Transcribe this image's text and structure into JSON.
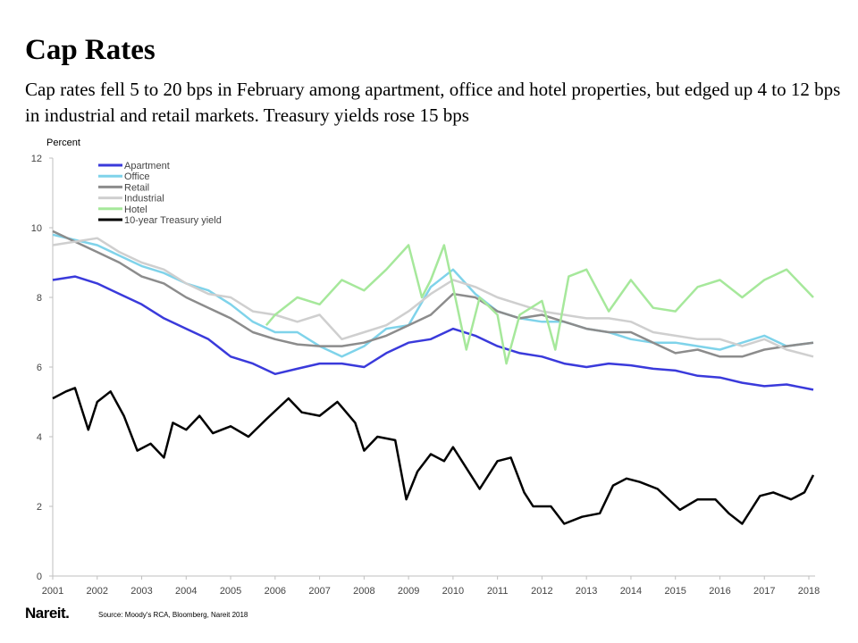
{
  "title": "Cap Rates",
  "subtitle": "Cap rates fell 5 to 20 bps in February among apartment, office and hotel properties, but edged up 4 to 12 bps in industrial and retail markets. Treasury yields rose 15 bps",
  "footer": {
    "logo": "Nareit.",
    "source": "Source: Moody's RCA, Bloomberg, Nareit 2018"
  },
  "chart_data": {
    "type": "line",
    "ylabel": "Percent",
    "xlim": [
      2001,
      2018.1
    ],
    "ylim": [
      0,
      12
    ],
    "yticks": [
      0,
      2,
      4,
      6,
      8,
      10,
      12
    ],
    "xticks": [
      "2001",
      "2002",
      "2003",
      "2004",
      "2005",
      "2006",
      "2007",
      "2008",
      "2009",
      "2010",
      "2011",
      "2012",
      "2013",
      "2014",
      "2015",
      "2016",
      "2017",
      "2018"
    ],
    "grid": false,
    "legend_placement": "top-left",
    "series": [
      {
        "name": "Apartment",
        "color": "#3a3adb",
        "points": [
          [
            2001,
            8.5
          ],
          [
            2001.5,
            8.6
          ],
          [
            2002,
            8.4
          ],
          [
            2002.5,
            8.1
          ],
          [
            2003,
            7.8
          ],
          [
            2003.5,
            7.4
          ],
          [
            2004,
            7.1
          ],
          [
            2004.5,
            6.8
          ],
          [
            2005,
            6.3
          ],
          [
            2005.5,
            6.1
          ],
          [
            2006,
            5.8
          ],
          [
            2006.5,
            5.95
          ],
          [
            2007,
            6.1
          ],
          [
            2007.5,
            6.1
          ],
          [
            2008,
            6.0
          ],
          [
            2008.5,
            6.4
          ],
          [
            2009,
            6.7
          ],
          [
            2009.5,
            6.8
          ],
          [
            2010,
            7.1
          ],
          [
            2010.5,
            6.9
          ],
          [
            2011,
            6.6
          ],
          [
            2011.5,
            6.4
          ],
          [
            2012,
            6.3
          ],
          [
            2012.5,
            6.1
          ],
          [
            2013,
            6.0
          ],
          [
            2013.5,
            6.1
          ],
          [
            2014,
            6.05
          ],
          [
            2014.5,
            5.95
          ],
          [
            2015,
            5.9
          ],
          [
            2015.5,
            5.75
          ],
          [
            2016,
            5.7
          ],
          [
            2016.5,
            5.55
          ],
          [
            2017,
            5.45
          ],
          [
            2017.5,
            5.5
          ],
          [
            2018.1,
            5.35
          ]
        ]
      },
      {
        "name": "Office",
        "color": "#7fd3ea",
        "points": [
          [
            2001,
            9.8
          ],
          [
            2002,
            9.5
          ],
          [
            2002.5,
            9.2
          ],
          [
            2003,
            8.9
          ],
          [
            2003.5,
            8.7
          ],
          [
            2004,
            8.4
          ],
          [
            2004.5,
            8.2
          ],
          [
            2005,
            7.8
          ],
          [
            2005.5,
            7.3
          ],
          [
            2006,
            7.0
          ],
          [
            2006.5,
            7.0
          ],
          [
            2007,
            6.6
          ],
          [
            2007.5,
            6.3
          ],
          [
            2008,
            6.6
          ],
          [
            2008.5,
            7.1
          ],
          [
            2009,
            7.2
          ],
          [
            2009.5,
            8.3
          ],
          [
            2010,
            8.8
          ],
          [
            2010.5,
            8.1
          ],
          [
            2011,
            7.6
          ],
          [
            2011.5,
            7.4
          ],
          [
            2012,
            7.3
          ],
          [
            2012.5,
            7.3
          ],
          [
            2013,
            7.1
          ],
          [
            2013.5,
            7.0
          ],
          [
            2014,
            6.8
          ],
          [
            2014.5,
            6.7
          ],
          [
            2015,
            6.7
          ],
          [
            2015.5,
            6.6
          ],
          [
            2016,
            6.5
          ],
          [
            2016.5,
            6.7
          ],
          [
            2017,
            6.9
          ],
          [
            2017.5,
            6.6
          ],
          [
            2018.1,
            6.7
          ]
        ]
      },
      {
        "name": "Retail",
        "color": "#8c8c8c",
        "points": [
          [
            2001,
            9.9
          ],
          [
            2001.5,
            9.6
          ],
          [
            2002,
            9.3
          ],
          [
            2002.5,
            9.0
          ],
          [
            2003,
            8.6
          ],
          [
            2003.5,
            8.4
          ],
          [
            2004,
            8.0
          ],
          [
            2004.5,
            7.7
          ],
          [
            2005,
            7.4
          ],
          [
            2005.5,
            7.0
          ],
          [
            2006,
            6.8
          ],
          [
            2006.5,
            6.65
          ],
          [
            2007,
            6.6
          ],
          [
            2007.5,
            6.6
          ],
          [
            2008,
            6.7
          ],
          [
            2008.5,
            6.9
          ],
          [
            2009,
            7.2
          ],
          [
            2009.5,
            7.5
          ],
          [
            2010,
            8.1
          ],
          [
            2010.5,
            8.0
          ],
          [
            2011,
            7.6
          ],
          [
            2011.5,
            7.4
          ],
          [
            2012,
            7.5
          ],
          [
            2012.5,
            7.3
          ],
          [
            2013,
            7.1
          ],
          [
            2013.5,
            7.0
          ],
          [
            2014,
            7.0
          ],
          [
            2014.5,
            6.7
          ],
          [
            2015,
            6.4
          ],
          [
            2015.5,
            6.5
          ],
          [
            2016,
            6.3
          ],
          [
            2016.5,
            6.3
          ],
          [
            2017,
            6.5
          ],
          [
            2017.5,
            6.6
          ],
          [
            2018.1,
            6.7
          ]
        ]
      },
      {
        "name": "Industrial",
        "color": "#cfcfcf",
        "points": [
          [
            2001,
            9.5
          ],
          [
            2001.5,
            9.6
          ],
          [
            2002,
            9.7
          ],
          [
            2002.5,
            9.3
          ],
          [
            2003,
            9.0
          ],
          [
            2003.5,
            8.8
          ],
          [
            2004,
            8.4
          ],
          [
            2004.5,
            8.1
          ],
          [
            2005,
            8.0
          ],
          [
            2005.5,
            7.6
          ],
          [
            2006,
            7.5
          ],
          [
            2006.5,
            7.3
          ],
          [
            2007,
            7.5
          ],
          [
            2007.5,
            6.8
          ],
          [
            2008,
            7.0
          ],
          [
            2008.5,
            7.2
          ],
          [
            2009,
            7.6
          ],
          [
            2009.5,
            8.1
          ],
          [
            2010,
            8.5
          ],
          [
            2010.5,
            8.3
          ],
          [
            2011,
            8.0
          ],
          [
            2011.5,
            7.8
          ],
          [
            2012,
            7.6
          ],
          [
            2012.5,
            7.5
          ],
          [
            2013,
            7.4
          ],
          [
            2013.5,
            7.4
          ],
          [
            2014,
            7.3
          ],
          [
            2014.5,
            7.0
          ],
          [
            2015,
            6.9
          ],
          [
            2015.5,
            6.8
          ],
          [
            2016,
            6.8
          ],
          [
            2016.5,
            6.6
          ],
          [
            2017,
            6.8
          ],
          [
            2017.5,
            6.5
          ],
          [
            2018.1,
            6.3
          ]
        ]
      },
      {
        "name": "Hotel",
        "color": "#a6e89b",
        "points": [
          [
            2005.8,
            7.2
          ],
          [
            2006,
            7.5
          ],
          [
            2006.5,
            8.0
          ],
          [
            2007,
            7.8
          ],
          [
            2007.5,
            8.5
          ],
          [
            2008,
            8.2
          ],
          [
            2008.5,
            8.8
          ],
          [
            2009,
            9.5
          ],
          [
            2009.3,
            8.0
          ],
          [
            2009.5,
            8.5
          ],
          [
            2009.8,
            9.5
          ],
          [
            2010,
            8.3
          ],
          [
            2010.3,
            6.5
          ],
          [
            2010.6,
            8.0
          ],
          [
            2011,
            7.5
          ],
          [
            2011.2,
            6.1
          ],
          [
            2011.5,
            7.5
          ],
          [
            2012,
            7.9
          ],
          [
            2012.3,
            6.5
          ],
          [
            2012.6,
            8.6
          ],
          [
            2013,
            8.8
          ],
          [
            2013.5,
            7.6
          ],
          [
            2014,
            8.5
          ],
          [
            2014.5,
            7.7
          ],
          [
            2015,
            7.6
          ],
          [
            2015.5,
            8.3
          ],
          [
            2016,
            8.5
          ],
          [
            2016.5,
            8.0
          ],
          [
            2017,
            8.5
          ],
          [
            2017.5,
            8.8
          ],
          [
            2018.1,
            8.0
          ]
        ]
      },
      {
        "name": "10-year Treasury yield",
        "color": "#000000",
        "points": [
          [
            2001,
            5.1
          ],
          [
            2001.3,
            5.3
          ],
          [
            2001.5,
            5.4
          ],
          [
            2001.8,
            4.2
          ],
          [
            2002,
            5.0
          ],
          [
            2002.3,
            5.3
          ],
          [
            2002.6,
            4.6
          ],
          [
            2002.9,
            3.6
          ],
          [
            2003.2,
            3.8
          ],
          [
            2003.5,
            3.4
          ],
          [
            2003.7,
            4.4
          ],
          [
            2004,
            4.2
          ],
          [
            2004.3,
            4.6
          ],
          [
            2004.6,
            4.1
          ],
          [
            2005,
            4.3
          ],
          [
            2005.4,
            4.0
          ],
          [
            2005.8,
            4.5
          ],
          [
            2006.3,
            5.1
          ],
          [
            2006.6,
            4.7
          ],
          [
            2007,
            4.6
          ],
          [
            2007.4,
            5.0
          ],
          [
            2007.8,
            4.4
          ],
          [
            2008,
            3.6
          ],
          [
            2008.3,
            4.0
          ],
          [
            2008.7,
            3.9
          ],
          [
            2008.95,
            2.2
          ],
          [
            2009.2,
            3.0
          ],
          [
            2009.5,
            3.5
          ],
          [
            2009.8,
            3.3
          ],
          [
            2010,
            3.7
          ],
          [
            2010.4,
            2.9
          ],
          [
            2010.6,
            2.5
          ],
          [
            2011,
            3.3
          ],
          [
            2011.3,
            3.4
          ],
          [
            2011.6,
            2.4
          ],
          [
            2011.8,
            2.0
          ],
          [
            2012.2,
            2.0
          ],
          [
            2012.5,
            1.5
          ],
          [
            2012.9,
            1.7
          ],
          [
            2013.3,
            1.8
          ],
          [
            2013.6,
            2.6
          ],
          [
            2013.9,
            2.8
          ],
          [
            2014.2,
            2.7
          ],
          [
            2014.6,
            2.5
          ],
          [
            2015.1,
            1.9
          ],
          [
            2015.5,
            2.2
          ],
          [
            2015.9,
            2.2
          ],
          [
            2016.2,
            1.8
          ],
          [
            2016.5,
            1.5
          ],
          [
            2016.9,
            2.3
          ],
          [
            2017.2,
            2.4
          ],
          [
            2017.6,
            2.2
          ],
          [
            2017.9,
            2.4
          ],
          [
            2018.1,
            2.9
          ]
        ]
      }
    ]
  }
}
